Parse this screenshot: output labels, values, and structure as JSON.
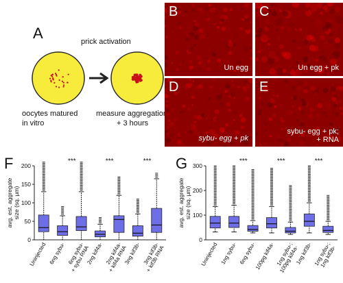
{
  "panel_a": {
    "letter": "A",
    "top_label": "prick activation",
    "left_caption_1": "oocytes matured",
    "left_caption_2": "in vitro",
    "right_caption_1": "measure aggregation",
    "right_caption_2": "+ 3 hours",
    "colors": {
      "egg_fill": "#f7ec3c",
      "egg_stroke": "#2a2a2a",
      "dot": "#c8101a"
    }
  },
  "micrographs": [
    {
      "letter": "B",
      "label_1": "Un egg",
      "label_2": ""
    },
    {
      "letter": "C",
      "label_1": "Un egg + pk",
      "label_2": ""
    },
    {
      "letter": "D",
      "label_1": "sybu- egg + pk",
      "label_2": ""
    },
    {
      "letter": "E",
      "label_1": "sybu- egg + pk;",
      "label_2": "+ RNA"
    }
  ],
  "chart_data": [
    {
      "panel": "F",
      "type": "box",
      "ylabel": "avg. est. aggregate size (sq. µm)",
      "ylabel_line1": "avg. est. aggregate",
      "ylabel_line2": "size (sq. µm)",
      "ylim": [
        0,
        200
      ],
      "yticks": [
        0,
        50,
        100,
        150,
        200
      ],
      "box_color": "#6e6ee6",
      "categories": [
        "Uninjected",
        "6ng sybu-",
        "6ng sybu- + sybu RNA",
        "2ng kif4a-",
        "2ng kif4a- + kif4a RNA",
        "3ng kif3b-",
        "3ng kif3b- + kif3b RNA"
      ],
      "category_lines": [
        [
          "Uninjected"
        ],
        [
          "6ng sybu-"
        ],
        [
          "6ng sybu-",
          "+ sybu RNA"
        ],
        [
          "2ng kif4a-"
        ],
        [
          "2ng kif4a-",
          "+ kif4a RNA"
        ],
        [
          "3ng kif3b-"
        ],
        [
          "3ng kif3b-",
          "+ kif3b RNA"
        ]
      ],
      "boxes": [
        {
          "whisker_low": 0,
          "q1": 22,
          "median": 33,
          "q3": 67,
          "whisker_high": 130
        },
        {
          "whisker_low": 0,
          "q1": 12,
          "median": 22,
          "q3": 38,
          "whisker_high": 65
        },
        {
          "whisker_low": 0,
          "q1": 25,
          "median": 35,
          "q3": 63,
          "whisker_high": 130
        },
        {
          "whisker_low": 0,
          "q1": 8,
          "median": 15,
          "q3": 24,
          "whisker_high": 42
        },
        {
          "whisker_low": 0,
          "q1": 20,
          "median": 55,
          "q3": 65,
          "whisker_high": 120
        },
        {
          "whisker_low": 0,
          "q1": 10,
          "median": 18,
          "q3": 38,
          "whisker_high": 70
        },
        {
          "whisker_low": 0,
          "q1": 20,
          "median": 40,
          "q3": 85,
          "whisker_high": 165
        }
      ],
      "outliers_top": [
        245,
        90,
        245,
        60,
        170,
        110,
        180
      ],
      "significance": [
        {
          "between": [
            1,
            2
          ],
          "label": "***"
        },
        {
          "between": [
            3,
            4
          ],
          "label": "***"
        },
        {
          "between": [
            5,
            6
          ],
          "label": "***"
        }
      ]
    },
    {
      "panel": "G",
      "type": "box",
      "ylabel": "avg. est. aggregate size (sq. µm)",
      "ylabel_line1": "avg. est. aggregate",
      "ylabel_line2": "size (sq. µm)",
      "ylim": [
        0,
        300
      ],
      "yticks": [
        0,
        100,
        200,
        300
      ],
      "box_color": "#6e6ee6",
      "categories": [
        "Uninjected",
        "1ng sybu-",
        "6ng sybu-",
        "100pg kif4a-",
        "1ng sybu-; 100pg kif4a-",
        "1ng kif3b-",
        "1ng sybu-; 1ng kif3b-"
      ],
      "category_lines": [
        [
          "Uninjected"
        ],
        [
          "1ng sybu-"
        ],
        [
          "6ng sybu-"
        ],
        [
          "100pg kif4a-"
        ],
        [
          "1ng sybu-;",
          "100pg kif4a-"
        ],
        [
          "1ng kif3b-"
        ],
        [
          "1ng sybu-;",
          "1ng kif3b-"
        ]
      ],
      "boxes": [
        {
          "whisker_low": 32,
          "q1": 48,
          "median": 68,
          "q3": 95,
          "whisker_high": 135
        },
        {
          "whisker_low": 32,
          "q1": 50,
          "median": 68,
          "q3": 95,
          "whisker_high": 140
        },
        {
          "whisker_low": 28,
          "q1": 35,
          "median": 42,
          "q3": 58,
          "whisker_high": 78
        },
        {
          "whisker_low": 28,
          "q1": 48,
          "median": 65,
          "q3": 90,
          "whisker_high": 135
        },
        {
          "whisker_low": 22,
          "q1": 28,
          "median": 35,
          "q3": 50,
          "whisker_high": 72
        },
        {
          "whisker_low": 28,
          "q1": 55,
          "median": 75,
          "q3": 105,
          "whisker_high": 150
        },
        {
          "whisker_low": 22,
          "q1": 30,
          "median": 38,
          "q3": 55,
          "whisker_high": 75
        }
      ],
      "outliers_top": [
        300,
        300,
        285,
        290,
        220,
        300,
        180
      ],
      "significance": [
        {
          "between": [
            1,
            2
          ],
          "label": "***"
        },
        {
          "between": [
            3,
            4
          ],
          "label": "***"
        },
        {
          "between": [
            5,
            6
          ],
          "label": "***"
        }
      ]
    }
  ]
}
